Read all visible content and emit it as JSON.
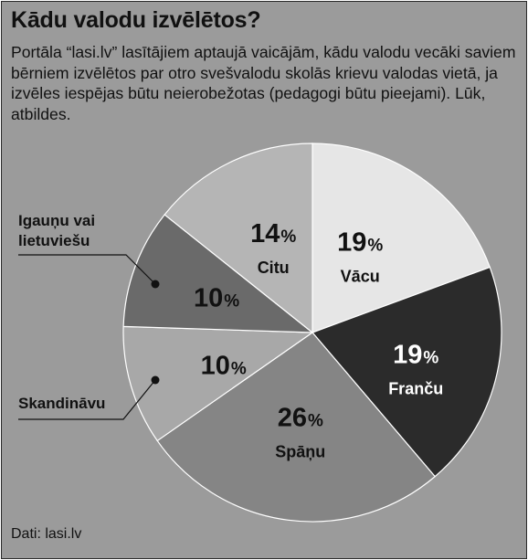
{
  "header": {
    "title": "Kādu valodu izvēlētos?",
    "subtitle": "Portāla “lasi.lv” lasītājiem aptaujā vaicājām, kādu valodu vecāki saviem bērniem izvēlētos par otro svešvalodu skolās krievu valodas vietā, ja izvēles iespējas būtu neierobežotas (pedagogi būtu pieejami). Lūk, atbildes."
  },
  "footer": {
    "source": "Dati: lasi.lv"
  },
  "chart_data": {
    "type": "pie",
    "title": "Kādu valodu izvēlētos?",
    "start_direction": "top (12 o'clock), clockwise",
    "slices": [
      {
        "label": "Vācu",
        "value": 19,
        "value_label": "19",
        "color": "#e6e6e6",
        "text_color": "#111111"
      },
      {
        "label": "Franču",
        "value": 19,
        "value_label": "19",
        "color": "#2b2b2b",
        "text_color": "#ffffff"
      },
      {
        "label": "Spāņu",
        "value": 26,
        "value_label": "26",
        "color": "#858585",
        "text_color": "#111111"
      },
      {
        "label": "Skandināvu",
        "value": 10,
        "value_label": "10",
        "color": "#a8a8a8",
        "text_color": "#111111"
      },
      {
        "label": "Igauņu vai lietuviešu",
        "label_lines": [
          "Igauņu vai",
          "lietuviešu"
        ],
        "value": 10,
        "value_label": "10",
        "color": "#6a6a6a",
        "text_color": "#111111"
      },
      {
        "label": "Citu",
        "value": 14,
        "value_label": "14",
        "color": "#b5b5b5",
        "text_color": "#111111"
      }
    ],
    "unit": "%",
    "callout_slices": [
      "Skandināvu",
      "Igauņu vai lietuviešu"
    ]
  }
}
